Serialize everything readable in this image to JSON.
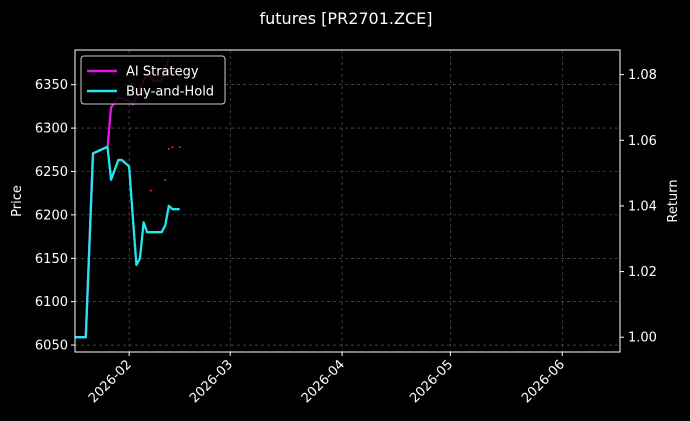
{
  "chart_data": {
    "type": "line",
    "title": "futures [PR2701.ZCE]",
    "xlabel": "",
    "ylabel": "Price",
    "y2label": "Return",
    "x_ticks": [
      "2026-02",
      "2026-03",
      "2026-04",
      "2026-05",
      "2026-06"
    ],
    "y_ticks": [
      6050,
      6100,
      6150,
      6200,
      6250,
      6300,
      6350
    ],
    "y2_ticks": [
      "1.00",
      "1.02",
      "1.04",
      "1.06",
      "1.08"
    ],
    "xlim": [
      "2026-01-17",
      "2026-06-17"
    ],
    "ylim": [
      6042,
      6390
    ],
    "y2lim": [
      0.9955,
      1.0875
    ],
    "grid": true,
    "legend_position": "top-left",
    "background": "#000000",
    "series": [
      {
        "name": "AI Strategy",
        "axis": "right",
        "color": "#e815e8",
        "points": [
          [
            "2026-01-17",
            1.0
          ],
          [
            "2026-01-20",
            1.0
          ],
          [
            "2026-01-22",
            1.056
          ],
          [
            "2026-01-26",
            1.058
          ],
          [
            "2026-01-27",
            1.07
          ],
          [
            "2026-01-29",
            1.073
          ],
          [
            "2026-02-01",
            1.072
          ],
          [
            "2026-02-02",
            1.071
          ],
          [
            "2026-02-04",
            1.076
          ],
          [
            "2026-02-06",
            1.08
          ],
          [
            "2026-02-08",
            1.078
          ],
          [
            "2026-02-10",
            1.078
          ],
          [
            "2026-02-12",
            1.085
          ]
        ]
      },
      {
        "name": "Buy-and-Hold",
        "axis": "right",
        "color": "#22e6f0",
        "points": [
          [
            "2026-01-17",
            1.0
          ],
          [
            "2026-01-20",
            1.0
          ],
          [
            "2026-01-22",
            1.056
          ],
          [
            "2026-01-26",
            1.058
          ],
          [
            "2026-01-27",
            1.048
          ],
          [
            "2026-01-29",
            1.054
          ],
          [
            "2026-01-30",
            1.054
          ],
          [
            "2026-02-01",
            1.052
          ],
          [
            "2026-02-03",
            1.022
          ],
          [
            "2026-02-04",
            1.024
          ],
          [
            "2026-02-05",
            1.035
          ],
          [
            "2026-02-06",
            1.032
          ],
          [
            "2026-02-10",
            1.032
          ],
          [
            "2026-02-11",
            1.034
          ],
          [
            "2026-02-12",
            1.04
          ],
          [
            "2026-02-13",
            1.039
          ],
          [
            "2026-02-15",
            1.039
          ]
        ]
      }
    ],
    "price_markers": [
      [
        "2026-02-12",
        6276
      ],
      [
        "2026-02-13",
        6278
      ],
      [
        "2026-02-15",
        6278
      ],
      [
        "2026-02-11",
        6240
      ],
      [
        "2026-02-07",
        6228
      ],
      [
        "2026-02-10",
        6355
      ]
    ],
    "marker_color": "#ff2a6a"
  }
}
